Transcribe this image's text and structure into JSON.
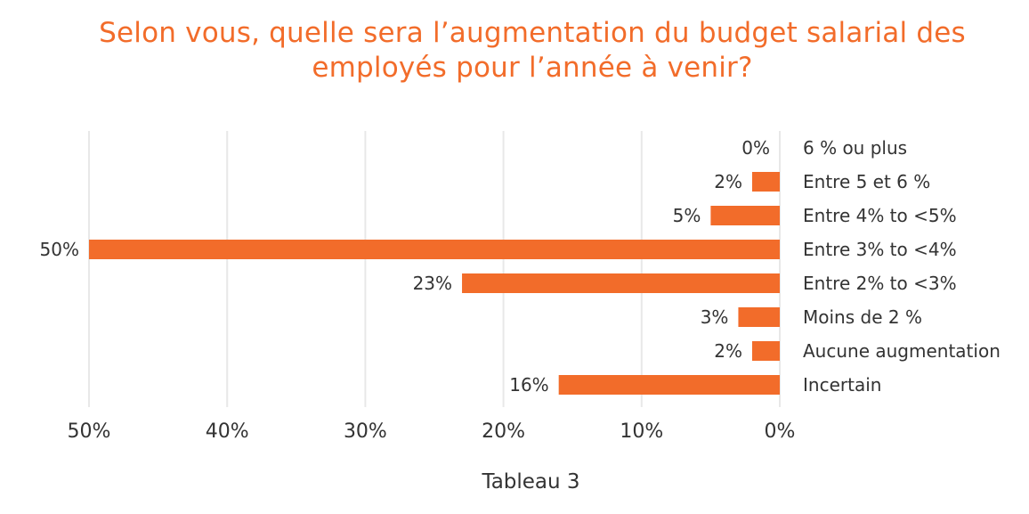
{
  "title": "Selon vous, quelle sera l’augmentation du budget salarial des\nemployés pour l’année à venir?",
  "caption": "Tableau 3",
  "colors": {
    "accent": "#f26c2a",
    "bar": "#f26c2a",
    "grid": "#e8e8e8",
    "text": "#333333"
  },
  "chart_data": {
    "type": "bar",
    "orientation": "horizontal",
    "x_direction": "reversed",
    "title": "Selon vous, quelle sera l’augmentation du budget salarial des employés pour l’année à venir?",
    "xlabel": "",
    "ylabel": "",
    "xlim": [
      0,
      50
    ],
    "grid": true,
    "legend": "none",
    "categories": [
      "6 % ou plus",
      "Entre 5 et 6 %",
      "Entre 4% to <5%",
      "Entre 3% to <4%",
      "Entre 2% to <3%",
      "Moins de 2 %",
      "Aucune augmentation",
      "Incertain"
    ],
    "values": [
      0,
      2,
      5,
      50,
      23,
      3,
      2,
      16
    ],
    "value_labels": [
      "0%",
      "2%",
      "5%",
      "50%",
      "23%",
      "3%",
      "2%",
      "16%"
    ],
    "x_ticks": [
      50,
      40,
      30,
      20,
      10,
      0
    ],
    "x_tick_labels": [
      "50%",
      "40%",
      "30%",
      "20%",
      "10%",
      "0%"
    ]
  }
}
